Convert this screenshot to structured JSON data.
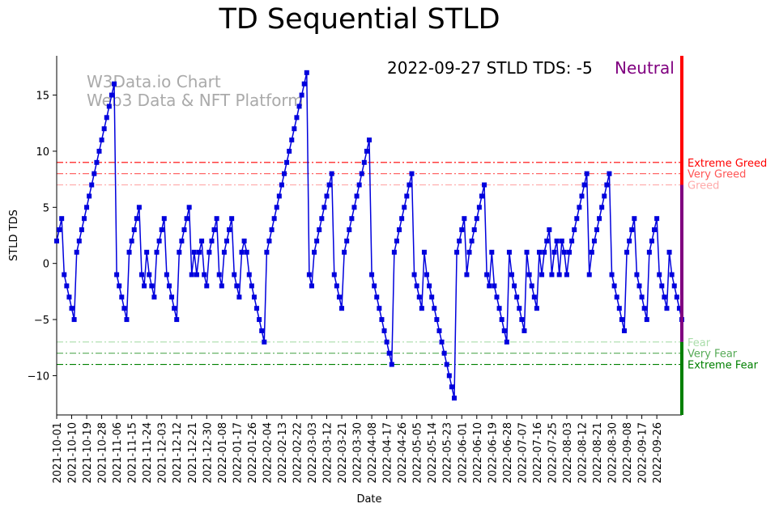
{
  "chart_data": {
    "type": "line",
    "title": "TD Sequential STLD",
    "xlabel": "Date",
    "ylabel": "STLD TDS",
    "ylim": [
      -13.5,
      18.5
    ],
    "y_ticks": [
      -10,
      -5,
      0,
      5,
      10,
      15
    ],
    "x_tick_labels": [
      "2021-10-01",
      "2021-10-10",
      "2021-10-19",
      "2021-10-28",
      "2021-11-06",
      "2021-11-15",
      "2021-11-24",
      "2021-12-03",
      "2021-12-12",
      "2021-12-21",
      "2021-12-30",
      "2022-01-08",
      "2022-01-17",
      "2022-01-26",
      "2022-02-04",
      "2022-02-13",
      "2022-02-22",
      "2022-03-03",
      "2022-03-12",
      "2022-03-21",
      "2022-03-30",
      "2022-04-08",
      "2022-04-17",
      "2022-04-26",
      "2022-05-05",
      "2022-05-14",
      "2022-05-23",
      "2022-06-01",
      "2022-06-10",
      "2022-06-19",
      "2022-06-28",
      "2022-07-07",
      "2022-07-16",
      "2022-07-25",
      "2022-08-03",
      "2022-08-12",
      "2022-08-21",
      "2022-08-30",
      "2022-09-08",
      "2022-09-17",
      "2022-09-26"
    ],
    "series": [
      {
        "name": "STLD TDS",
        "color": "#0000dd",
        "marker": "square",
        "values": [
          2,
          3,
          4,
          -1,
          -2,
          -3,
          -4,
          -5,
          1,
          2,
          3,
          4,
          5,
          6,
          7,
          8,
          9,
          10,
          11,
          12,
          13,
          14,
          15,
          16,
          -1,
          -2,
          -3,
          -4,
          -5,
          1,
          2,
          3,
          4,
          5,
          -1,
          -2,
          1,
          -1,
          -2,
          -3,
          1,
          2,
          3,
          4,
          -1,
          -2,
          -3,
          -4,
          -5,
          1,
          2,
          3,
          4,
          5,
          -1,
          1,
          -1,
          1,
          2,
          -1,
          -2,
          1,
          2,
          3,
          4,
          -1,
          -2,
          1,
          2,
          3,
          4,
          -1,
          -2,
          -3,
          1,
          2,
          1,
          -1,
          -2,
          -3,
          -4,
          -5,
          -6,
          -7,
          1,
          2,
          3,
          4,
          5,
          6,
          7,
          8,
          9,
          10,
          11,
          12,
          13,
          14,
          15,
          16,
          17,
          -1,
          -2,
          1,
          2,
          3,
          4,
          5,
          6,
          7,
          8,
          -1,
          -2,
          -3,
          -4,
          1,
          2,
          3,
          4,
          5,
          6,
          7,
          8,
          9,
          10,
          11,
          -1,
          -2,
          -3,
          -4,
          -5,
          -6,
          -7,
          -8,
          -9,
          1,
          2,
          3,
          4,
          5,
          6,
          7,
          8,
          -1,
          -2,
          -3,
          -4,
          1,
          -1,
          -2,
          -3,
          -4,
          -5,
          -6,
          -7,
          -8,
          -9,
          -10,
          -11,
          -12,
          1,
          2,
          3,
          4,
          -1,
          1,
          2,
          3,
          4,
          5,
          6,
          7,
          -1,
          -2,
          1,
          -2,
          -3,
          -4,
          -5,
          -6,
          -7,
          1,
          -1,
          -2,
          -3,
          -4,
          -5,
          -6,
          1,
          -1,
          -2,
          -3,
          -4,
          1,
          -1,
          1,
          2,
          3,
          -1,
          1,
          2,
          -1,
          2,
          1,
          -1,
          1,
          2,
          3,
          4,
          5,
          6,
          7,
          8,
          -1,
          1,
          2,
          3,
          4,
          5,
          6,
          7,
          8,
          -1,
          -2,
          -3,
          -4,
          -5,
          -6,
          1,
          2,
          3,
          4,
          -1,
          -2,
          -3,
          -4,
          -5,
          1,
          2,
          3,
          4,
          -1,
          -2,
          -3,
          -4,
          1,
          -1,
          -2,
          -3,
          -4,
          -5
        ]
      }
    ],
    "levels": [
      {
        "name": "Extreme Greed",
        "value": 9,
        "color": "#ff0000",
        "label": "Extreme Greed"
      },
      {
        "name": "Very Greed",
        "value": 8,
        "color": "#ff5555",
        "label": "Very Greed"
      },
      {
        "name": "Greed",
        "value": 7,
        "color": "#ffaaaa",
        "label": "Greed"
      },
      {
        "name": "Fear",
        "value": -7,
        "color": "#aaddaa",
        "label": "Fear"
      },
      {
        "name": "Very Fear",
        "value": -8,
        "color": "#55aa55",
        "label": "Very Fear"
      },
      {
        "name": "Extreme Fear",
        "value": -9,
        "color": "#008000",
        "label": "Extreme Fear"
      }
    ],
    "zone_bar": [
      {
        "from": 7,
        "to": 18.5,
        "color": "#ff0000"
      },
      {
        "from": -7,
        "to": 7,
        "color": "#800080"
      },
      {
        "from": -13.5,
        "to": -7,
        "color": "#008000"
      }
    ],
    "annotation": {
      "text": "2022-09-27 STLD TDS: -5",
      "status": "Neutral",
      "status_color": "#800080"
    },
    "watermark": [
      "W3Data.io Chart",
      "Web3 Data & NFT Platform"
    ]
  }
}
